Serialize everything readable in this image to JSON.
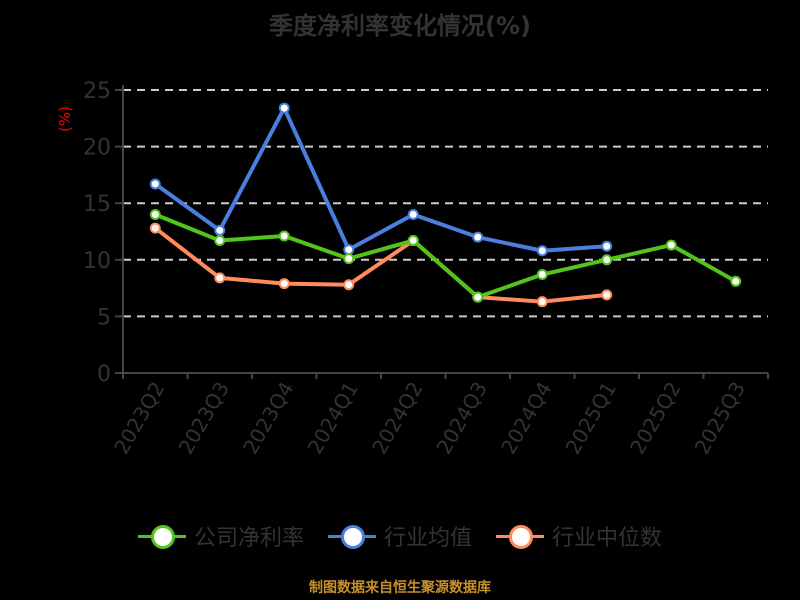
{
  "title": "季度净利率变化情况(%)",
  "y_unit": "(%)",
  "legend": [
    {
      "label": "公司净利率",
      "color": "#52c41a"
    },
    {
      "label": "行业均值",
      "color": "#4a7fe0"
    },
    {
      "label": "行业中位数",
      "color": "#ff8c5a"
    }
  ],
  "source": "制图数据来自恒生聚源数据库",
  "chart_data": {
    "type": "line",
    "title": "季度净利率变化情况(%)",
    "xlabel": "",
    "ylabel": "(%)",
    "ylim": [
      0,
      25
    ],
    "yticks": [
      0,
      5,
      10,
      15,
      20,
      25
    ],
    "grid": "horizontal dashed",
    "legend_position": "bottom",
    "categories": [
      "2023Q2",
      "2023Q3",
      "2023Q4",
      "2024Q1",
      "2024Q2",
      "2024Q3",
      "2024Q4",
      "2025Q1",
      "2025Q2",
      "2025Q3"
    ],
    "series": [
      {
        "name": "公司净利率",
        "color": "#52c41a",
        "values": [
          14.0,
          11.7,
          12.1,
          10.1,
          11.7,
          6.7,
          8.7,
          10.0,
          11.3,
          8.1
        ]
      },
      {
        "name": "行业均值",
        "color": "#4a7fe0",
        "values": [
          16.7,
          12.6,
          23.4,
          10.9,
          14.0,
          12.0,
          10.8,
          11.2,
          null,
          null
        ]
      },
      {
        "name": "行业中位数",
        "color": "#ff8c5a",
        "values": [
          12.8,
          8.4,
          7.9,
          7.8,
          11.7,
          6.7,
          6.3,
          6.9,
          null,
          null
        ]
      }
    ]
  }
}
